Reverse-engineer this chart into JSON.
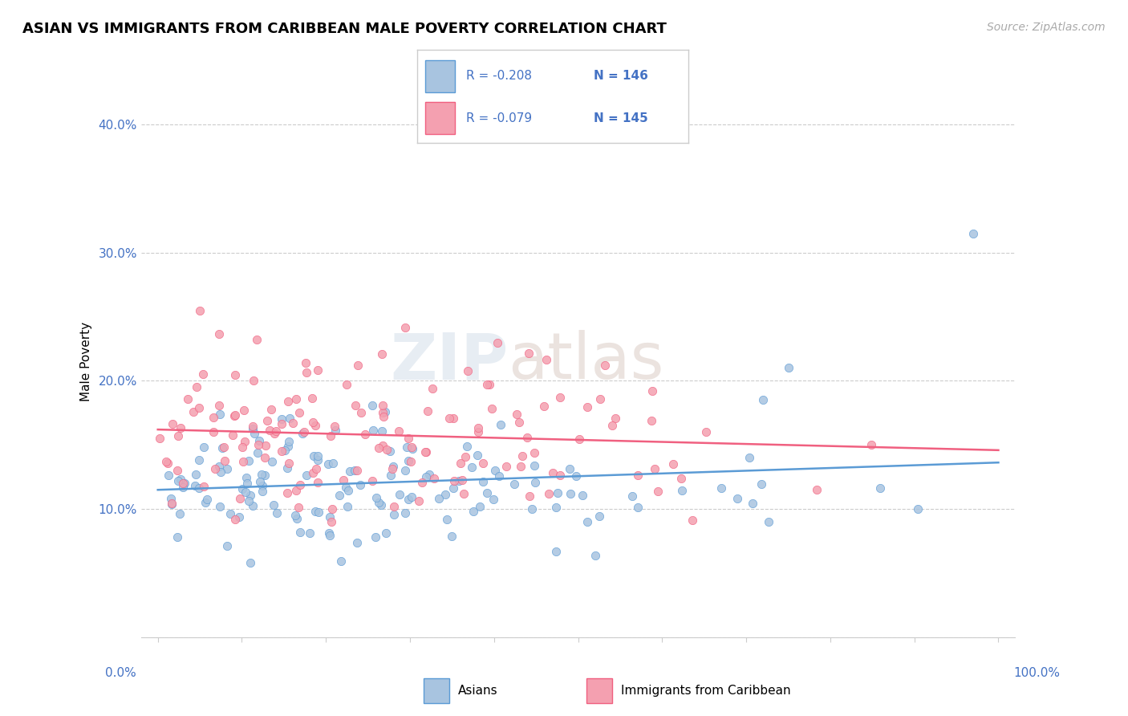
{
  "title": "ASIAN VS IMMIGRANTS FROM CARIBBEAN MALE POVERTY CORRELATION CHART",
  "source": "Source: ZipAtlas.com",
  "ylabel": "Male Poverty",
  "legend_r1": "R = -0.208",
  "legend_n1": "N = 146",
  "legend_r2": "R = -0.079",
  "legend_n2": "N = 145",
  "legend_label1": "Asians",
  "legend_label2": "Immigrants from Caribbean",
  "asian_color": "#a8c4e0",
  "caribbean_color": "#f4a0b0",
  "asian_line_color": "#5b9bd5",
  "caribbean_line_color": "#f06080",
  "watermark_zip": "ZIP",
  "watermark_atlas": "atlas",
  "title_fontsize": 13,
  "source_fontsize": 10,
  "legend_fontsize": 12
}
